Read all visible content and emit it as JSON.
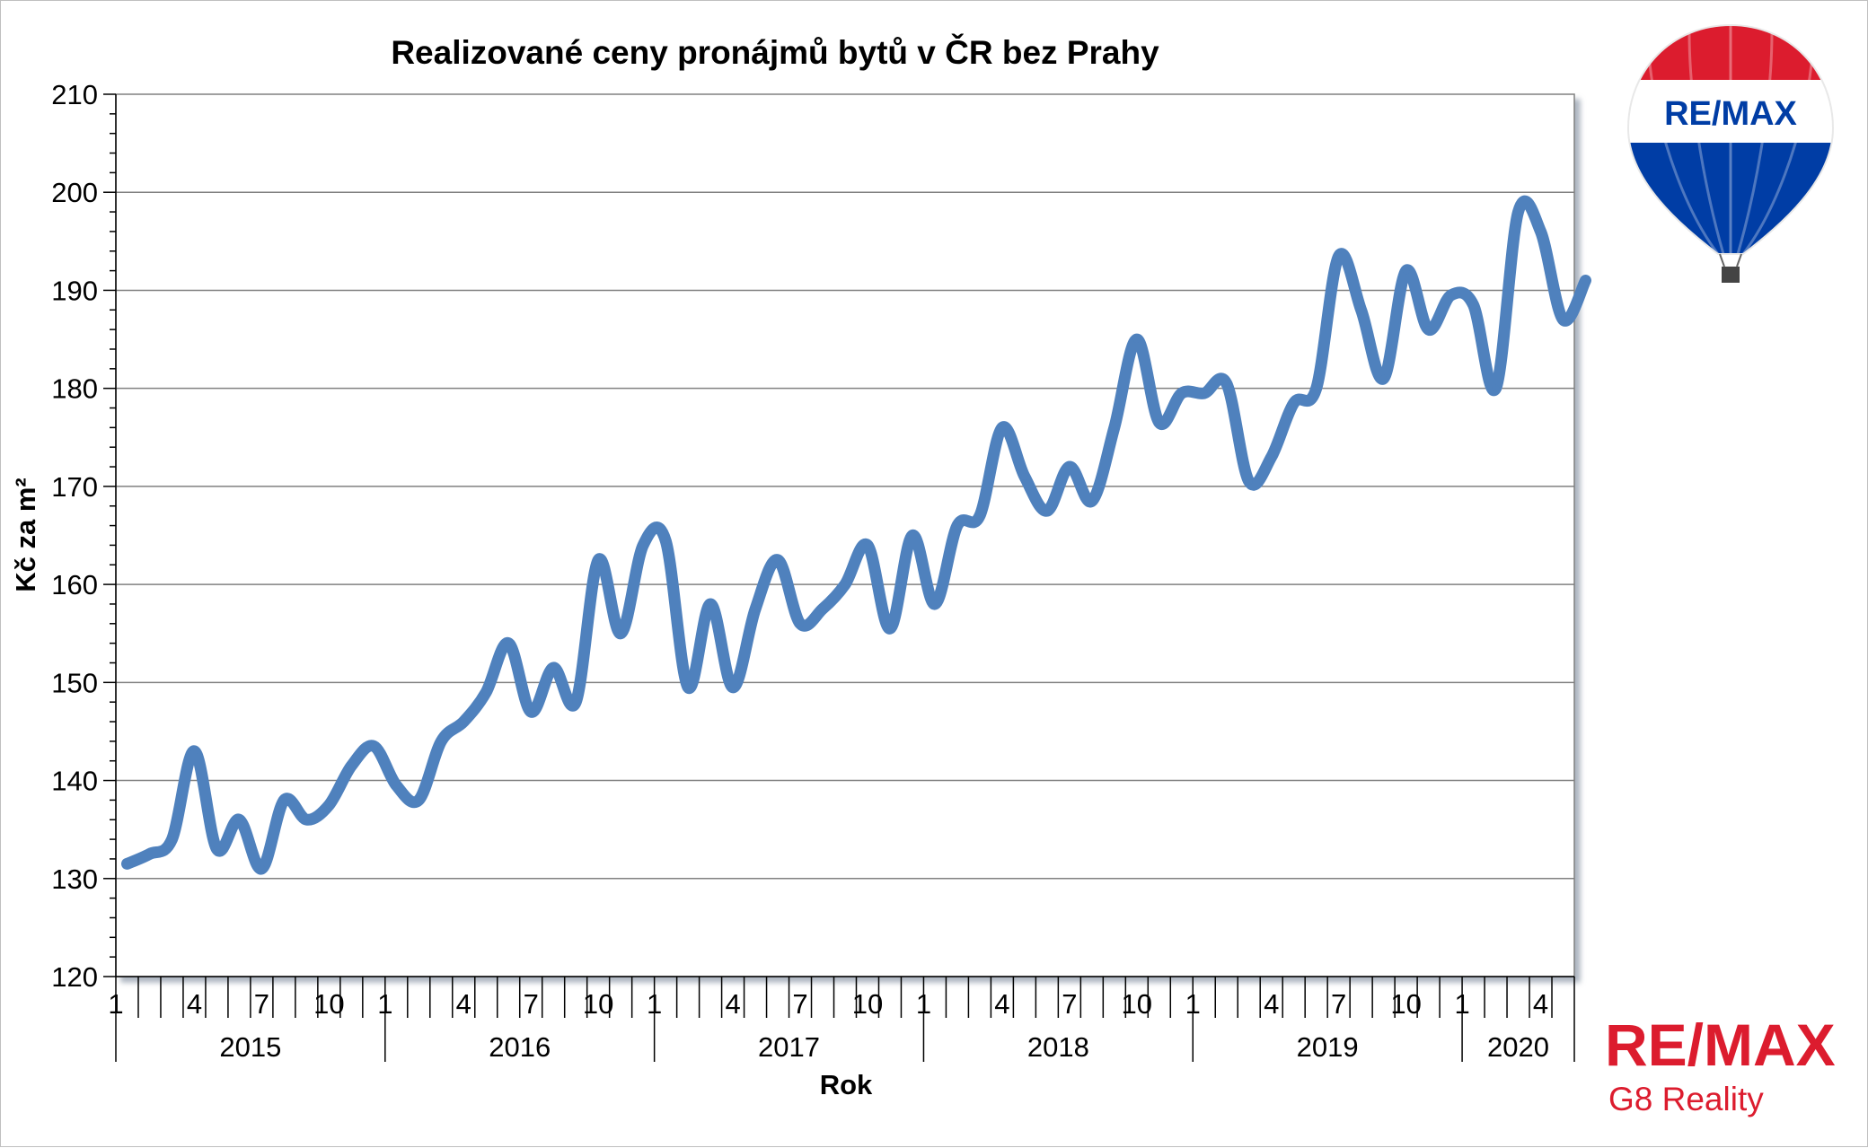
{
  "colors": {
    "series": "#4F81BD",
    "brand_red": "#DC1C2E",
    "brand_blue": "#003DA5"
  },
  "logos": {
    "balloon_text": "RE/MAX",
    "wordmark": "RE/MAX",
    "subtitle": "G8 Reality"
  },
  "chart_data": {
    "type": "line",
    "title": "Realizované ceny pronájmů bytů v ČR bez Prahy",
    "xlabel": "Rok",
    "ylabel": "Kč za m²",
    "ylim": [
      120,
      210
    ],
    "yticks": [
      120,
      130,
      140,
      150,
      160,
      170,
      180,
      190,
      200,
      210
    ],
    "grid": true,
    "legend": "none",
    "month_labels": [
      "1",
      "4",
      "7",
      "10"
    ],
    "years": [
      {
        "label": "2015",
        "months": 12
      },
      {
        "label": "2016",
        "months": 12
      },
      {
        "label": "2017",
        "months": 12
      },
      {
        "label": "2018",
        "months": 12
      },
      {
        "label": "2019",
        "months": 12
      },
      {
        "label": "2020",
        "months": 5
      }
    ],
    "series": [
      {
        "values": [
          131.5,
          132.5,
          134,
          143,
          133,
          136,
          131,
          138,
          136,
          137.5,
          141.5,
          143.5,
          139.5,
          138,
          144,
          146,
          149,
          154,
          147,
          151.5,
          148,
          162.5,
          155,
          164,
          164.5,
          149.5,
          158,
          149.5,
          157.5,
          162.5,
          156,
          157.5,
          160,
          164,
          155.5,
          165,
          158,
          166,
          167,
          176,
          171,
          167.5,
          172,
          168.5,
          176,
          185,
          176.5,
          179.5,
          179.5,
          180.5,
          170.5,
          173,
          178.5,
          180,
          193.5,
          188,
          181,
          192,
          186,
          189.5,
          188.5,
          180,
          198,
          196,
          187,
          191
        ]
      }
    ]
  }
}
